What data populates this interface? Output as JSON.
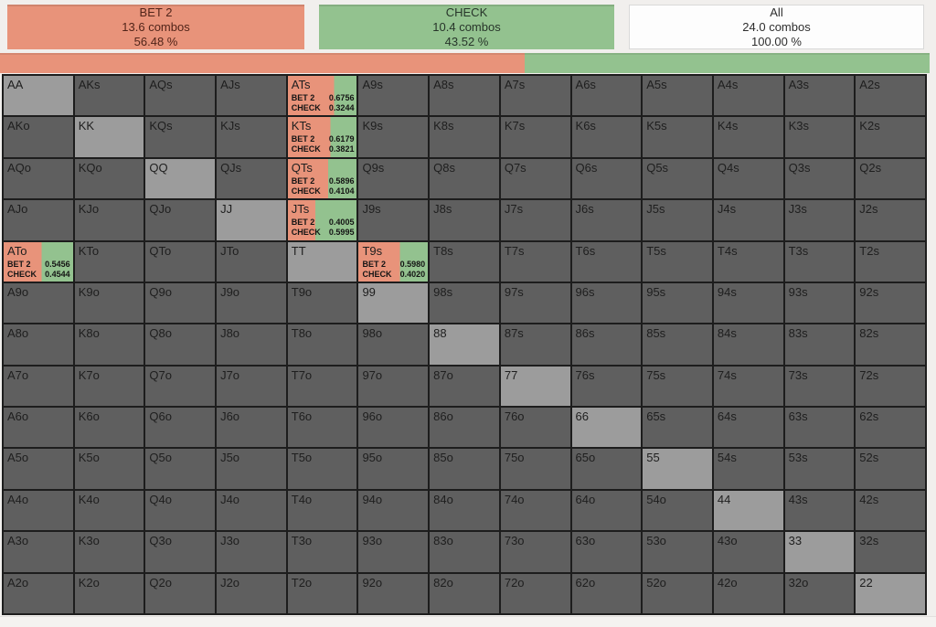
{
  "colors": {
    "bet": "#e8937a",
    "check": "#93c28f",
    "cell": "#5f5f5f",
    "pair": "#9c9c9c",
    "grid_line": "#1d1d1d"
  },
  "header": {
    "actions": [
      {
        "label": "BET 2",
        "combos": "13.6 combos",
        "percent": "56.48 %",
        "percent_value": 56.48,
        "color": "#e8937a",
        "text_color": "#512419"
      },
      {
        "label": "CHECK",
        "combos": "10.4 combos",
        "percent": "43.52 %",
        "percent_value": 43.52,
        "color": "#93c28f",
        "text_color": "#27352a"
      },
      {
        "label": "All",
        "combos": "24.0 combos",
        "percent": "100.00 %",
        "percent_value": 100.0,
        "color": "#fdfdfd",
        "text_color": "#2e2e2e"
      }
    ]
  },
  "grid": {
    "action_labels": {
      "bet": "BET 2",
      "check": "CHECK"
    },
    "rows": [
      [
        "AA",
        "AKs",
        "AQs",
        "AJs",
        "ATs",
        "A9s",
        "A8s",
        "A7s",
        "A6s",
        "A5s",
        "A4s",
        "A3s",
        "A2s"
      ],
      [
        "AKo",
        "KK",
        "KQs",
        "KJs",
        "KTs",
        "K9s",
        "K8s",
        "K7s",
        "K6s",
        "K5s",
        "K4s",
        "K3s",
        "K2s"
      ],
      [
        "AQo",
        "KQo",
        "QQ",
        "QJs",
        "QTs",
        "Q9s",
        "Q8s",
        "Q7s",
        "Q6s",
        "Q5s",
        "Q4s",
        "Q3s",
        "Q2s"
      ],
      [
        "AJo",
        "KJo",
        "QJo",
        "JJ",
        "JTs",
        "J9s",
        "J8s",
        "J7s",
        "J6s",
        "J5s",
        "J4s",
        "J3s",
        "J2s"
      ],
      [
        "ATo",
        "KTo",
        "QTo",
        "JTo",
        "TT",
        "T9s",
        "T8s",
        "T7s",
        "T6s",
        "T5s",
        "T4s",
        "T3s",
        "T2s"
      ],
      [
        "A9o",
        "K9o",
        "Q9o",
        "J9o",
        "T9o",
        "99",
        "98s",
        "97s",
        "96s",
        "95s",
        "94s",
        "93s",
        "92s"
      ],
      [
        "A8o",
        "K8o",
        "Q8o",
        "J8o",
        "T8o",
        "98o",
        "88",
        "87s",
        "86s",
        "85s",
        "84s",
        "83s",
        "82s"
      ],
      [
        "A7o",
        "K7o",
        "Q7o",
        "J7o",
        "T7o",
        "97o",
        "87o",
        "77",
        "76s",
        "75s",
        "74s",
        "73s",
        "72s"
      ],
      [
        "A6o",
        "K6o",
        "Q6o",
        "J6o",
        "T6o",
        "96o",
        "86o",
        "76o",
        "66",
        "65s",
        "64s",
        "63s",
        "62s"
      ],
      [
        "A5o",
        "K5o",
        "Q5o",
        "J5o",
        "T5o",
        "95o",
        "85o",
        "75o",
        "65o",
        "55",
        "54s",
        "53s",
        "52s"
      ],
      [
        "A4o",
        "K4o",
        "Q4o",
        "J4o",
        "T4o",
        "94o",
        "84o",
        "74o",
        "64o",
        "54o",
        "44",
        "43s",
        "42s"
      ],
      [
        "A3o",
        "K3o",
        "Q3o",
        "J3o",
        "T3o",
        "93o",
        "83o",
        "73o",
        "63o",
        "53o",
        "43o",
        "33",
        "32s"
      ],
      [
        "A2o",
        "K2o",
        "Q2o",
        "J2o",
        "T2o",
        "92o",
        "82o",
        "72o",
        "62o",
        "52o",
        "42o",
        "32o",
        "22"
      ]
    ],
    "pairs": [
      "AA",
      "KK",
      "QQ",
      "JJ",
      "TT",
      "99",
      "88",
      "77",
      "66",
      "55",
      "44",
      "33",
      "22"
    ],
    "details": {
      "ATs": {
        "bet": "0.6756",
        "check": "0.3244"
      },
      "KTs": {
        "bet": "0.6179",
        "check": "0.3821"
      },
      "QTs": {
        "bet": "0.5896",
        "check": "0.4104"
      },
      "JTs": {
        "bet": "0.4005",
        "check": "0.5995"
      },
      "ATo": {
        "bet": "0.5456",
        "check": "0.4544"
      },
      "T9s": {
        "bet": "0.5980",
        "check": "0.4020"
      }
    }
  }
}
